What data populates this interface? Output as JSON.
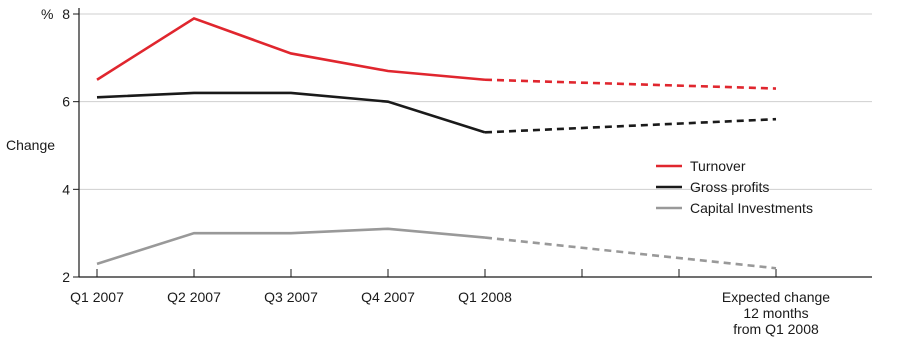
{
  "chart_data": {
    "type": "line",
    "title": "",
    "xlabel": "",
    "ylabel": "Change",
    "y_unit": "%",
    "ylim": [
      2,
      8
    ],
    "y_ticks": [
      "2",
      "4",
      "6",
      "8"
    ],
    "categories": [
      "Q1 2007",
      "Q2 2007",
      "Q3 2007",
      "Q4 2007",
      "Q1 2008",
      "",
      "",
      "Expected change\n12 months\nfrom Q1 2008"
    ],
    "actual_through_category": "Q1 2008",
    "projection_style": "dashed",
    "grid": "horizontal",
    "legend_position": "right",
    "series": [
      {
        "name": "Turnover",
        "color": "#e0262e",
        "values": [
          6.5,
          7.9,
          7.1,
          6.7,
          6.5,
          null,
          null,
          6.3
        ]
      },
      {
        "name": "Gross profits",
        "color": "#1a1a1a",
        "values": [
          6.1,
          6.2,
          6.2,
          6.0,
          5.3,
          null,
          null,
          5.6
        ]
      },
      {
        "name": "Capital Investments",
        "color": "#999999",
        "values": [
          2.3,
          3.0,
          3.0,
          3.1,
          2.9,
          null,
          null,
          2.2
        ]
      }
    ]
  }
}
